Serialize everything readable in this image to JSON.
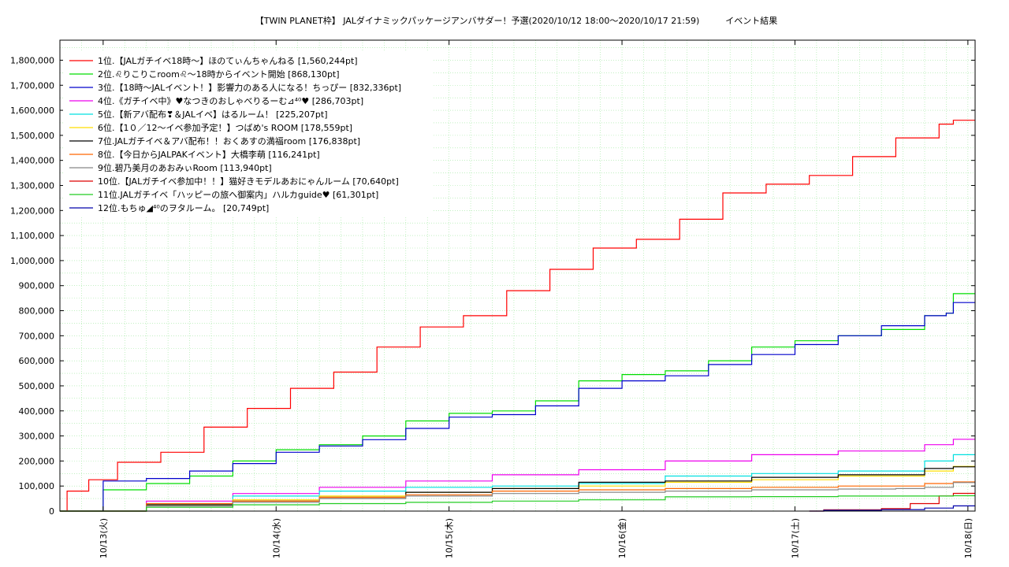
{
  "chart_data": {
    "type": "line",
    "title": "【TWIN PLANET枠】 JALダイナミックパッケージアンバサダー！予選(2020/10/12 18:00～2020/10/17 21:59)　　　イベント結果",
    "xlabel": "",
    "ylabel": "",
    "x_ticks": [
      "10/13(火)",
      "10/14(水)",
      "10/15(木)",
      "10/16(金)",
      "10/17(土)",
      "10/18(日)"
    ],
    "x_range": [
      "2020-10-12 18:00",
      "2020-10-18 01:00"
    ],
    "y_ticks": [
      "0",
      "100,000",
      "200,000",
      "300,000",
      "400,000",
      "500,000",
      "600,000",
      "700,000",
      "800,000",
      "900,000",
      "1,000,000",
      "1,100,000",
      "1,200,000",
      "1,300,000",
      "1,400,000",
      "1,500,000",
      "1,600,000",
      "1,700,000",
      "1,800,000"
    ],
    "ylim": [
      0,
      1880000
    ],
    "grid": true,
    "legend_position": "top-left",
    "series": [
      {
        "name": "1位.【JALガチイベ18時〜】ほのてぃんちゃんねる [1,560,244pt]",
        "color": "#ff0000",
        "points": [
          [
            "2020-10-12 18:00",
            0
          ],
          [
            "2020-10-12 19:00",
            80000
          ],
          [
            "2020-10-12 22:00",
            125000
          ],
          [
            "2020-10-13 02:00",
            195000
          ],
          [
            "2020-10-13 08:00",
            235000
          ],
          [
            "2020-10-13 14:00",
            335000
          ],
          [
            "2020-10-13 20:00",
            410000
          ],
          [
            "2020-10-14 02:00",
            490000
          ],
          [
            "2020-10-14 08:00",
            555000
          ],
          [
            "2020-10-14 14:00",
            655000
          ],
          [
            "2020-10-14 20:00",
            735000
          ],
          [
            "2020-10-15 02:00",
            780000
          ],
          [
            "2020-10-15 08:00",
            880000
          ],
          [
            "2020-10-15 14:00",
            965000
          ],
          [
            "2020-10-15 20:00",
            1050000
          ],
          [
            "2020-10-16 02:00",
            1085000
          ],
          [
            "2020-10-16 08:00",
            1165000
          ],
          [
            "2020-10-16 14:00",
            1270000
          ],
          [
            "2020-10-16 20:00",
            1305000
          ],
          [
            "2020-10-17 02:00",
            1340000
          ],
          [
            "2020-10-17 08:00",
            1415000
          ],
          [
            "2020-10-17 14:00",
            1490000
          ],
          [
            "2020-10-17 20:00",
            1545000
          ],
          [
            "2020-10-17 21:59",
            1560244
          ],
          [
            "2020-10-18 01:00",
            1560244
          ]
        ]
      },
      {
        "name": "2位.♌りこりこroom♌〜18時からイベント開始 [868,130pt]",
        "color": "#00dd00",
        "points": [
          [
            "2020-10-12 18:00",
            0
          ],
          [
            "2020-10-13 00:00",
            85000
          ],
          [
            "2020-10-13 06:00",
            110000
          ],
          [
            "2020-10-13 12:00",
            140000
          ],
          [
            "2020-10-13 18:00",
            200000
          ],
          [
            "2020-10-14 00:00",
            245000
          ],
          [
            "2020-10-14 06:00",
            265000
          ],
          [
            "2020-10-14 12:00",
            300000
          ],
          [
            "2020-10-14 18:00",
            360000
          ],
          [
            "2020-10-15 00:00",
            390000
          ],
          [
            "2020-10-15 06:00",
            400000
          ],
          [
            "2020-10-15 12:00",
            440000
          ],
          [
            "2020-10-15 18:00",
            520000
          ],
          [
            "2020-10-16 00:00",
            545000
          ],
          [
            "2020-10-16 06:00",
            560000
          ],
          [
            "2020-10-16 12:00",
            600000
          ],
          [
            "2020-10-16 18:00",
            655000
          ],
          [
            "2020-10-17 00:00",
            680000
          ],
          [
            "2020-10-17 06:00",
            700000
          ],
          [
            "2020-10-17 12:00",
            725000
          ],
          [
            "2020-10-17 18:00",
            780000
          ],
          [
            "2020-10-17 21:00",
            790000
          ],
          [
            "2020-10-17 21:59",
            868130
          ],
          [
            "2020-10-18 01:00",
            868130
          ]
        ]
      },
      {
        "name": "3位.【18時〜JALイベント！】影響力のある人になる！ちっぴー [832,336pt]",
        "color": "#0000cc",
        "points": [
          [
            "2020-10-12 18:00",
            0
          ],
          [
            "2020-10-13 00:00",
            120000
          ],
          [
            "2020-10-13 06:00",
            130000
          ],
          [
            "2020-10-13 12:00",
            160000
          ],
          [
            "2020-10-13 18:00",
            190000
          ],
          [
            "2020-10-14 00:00",
            235000
          ],
          [
            "2020-10-14 06:00",
            260000
          ],
          [
            "2020-10-14 12:00",
            285000
          ],
          [
            "2020-10-14 18:00",
            330000
          ],
          [
            "2020-10-15 00:00",
            375000
          ],
          [
            "2020-10-15 06:00",
            385000
          ],
          [
            "2020-10-15 12:00",
            420000
          ],
          [
            "2020-10-15 18:00",
            490000
          ],
          [
            "2020-10-16 00:00",
            520000
          ],
          [
            "2020-10-16 06:00",
            540000
          ],
          [
            "2020-10-16 12:00",
            585000
          ],
          [
            "2020-10-16 18:00",
            625000
          ],
          [
            "2020-10-17 00:00",
            665000
          ],
          [
            "2020-10-17 06:00",
            700000
          ],
          [
            "2020-10-17 12:00",
            740000
          ],
          [
            "2020-10-17 18:00",
            780000
          ],
          [
            "2020-10-17 21:00",
            790000
          ],
          [
            "2020-10-17 21:59",
            832336
          ],
          [
            "2020-10-18 01:00",
            832336
          ]
        ]
      },
      {
        "name": "4位.《ガチイベ中》♥なつきのおしゃべりるーむ⊿⁴⁰♥ [286,703pt]",
        "color": "#ee00ee",
        "points": [
          [
            "2020-10-12 18:00",
            0
          ],
          [
            "2020-10-13 06:00",
            40000
          ],
          [
            "2020-10-13 18:00",
            70000
          ],
          [
            "2020-10-14 06:00",
            95000
          ],
          [
            "2020-10-14 18:00",
            120000
          ],
          [
            "2020-10-15 06:00",
            145000
          ],
          [
            "2020-10-15 18:00",
            165000
          ],
          [
            "2020-10-16 06:00",
            200000
          ],
          [
            "2020-10-16 18:00",
            225000
          ],
          [
            "2020-10-17 06:00",
            240000
          ],
          [
            "2020-10-17 18:00",
            265000
          ],
          [
            "2020-10-17 21:59",
            286703
          ],
          [
            "2020-10-18 01:00",
            286703
          ]
        ]
      },
      {
        "name": "5位.【新アバ配布❣＆JALイベ】はるルーム！ [225,207pt]",
        "color": "#00e0e0",
        "points": [
          [
            "2020-10-12 18:00",
            0
          ],
          [
            "2020-10-13 06:00",
            30000
          ],
          [
            "2020-10-13 18:00",
            60000
          ],
          [
            "2020-10-14 06:00",
            80000
          ],
          [
            "2020-10-14 18:00",
            95000
          ],
          [
            "2020-10-15 06:00",
            100000
          ],
          [
            "2020-10-15 18:00",
            110000
          ],
          [
            "2020-10-16 06:00",
            140000
          ],
          [
            "2020-10-16 18:00",
            150000
          ],
          [
            "2020-10-17 06:00",
            160000
          ],
          [
            "2020-10-17 18:00",
            200000
          ],
          [
            "2020-10-17 21:59",
            225207
          ],
          [
            "2020-10-18 01:00",
            225207
          ]
        ]
      },
      {
        "name": "6位.【1０／12〜イベ参加予定！】つばめ's ROOM [178,559pt]",
        "color": "#ffdd00",
        "points": [
          [
            "2020-10-12 18:00",
            0
          ],
          [
            "2020-10-13 06:00",
            25000
          ],
          [
            "2020-10-13 18:00",
            45000
          ],
          [
            "2020-10-14 06:00",
            60000
          ],
          [
            "2020-10-14 18:00",
            75000
          ],
          [
            "2020-10-15 06:00",
            90000
          ],
          [
            "2020-10-15 18:00",
            100000
          ],
          [
            "2020-10-16 06:00",
            115000
          ],
          [
            "2020-10-16 18:00",
            125000
          ],
          [
            "2020-10-17 06:00",
            140000
          ],
          [
            "2020-10-17 18:00",
            160000
          ],
          [
            "2020-10-17 21:59",
            178559
          ],
          [
            "2020-10-18 01:00",
            178559
          ]
        ]
      },
      {
        "name": "7位.JALガチイベ＆アバ配布！！おくあすの満福room [176,838pt]",
        "color": "#000000",
        "points": [
          [
            "2020-10-12 18:00",
            0
          ],
          [
            "2020-10-13 06:00",
            25000
          ],
          [
            "2020-10-13 18:00",
            40000
          ],
          [
            "2020-10-14 06:00",
            55000
          ],
          [
            "2020-10-14 18:00",
            75000
          ],
          [
            "2020-10-15 06:00",
            90000
          ],
          [
            "2020-10-15 18:00",
            115000
          ],
          [
            "2020-10-16 06:00",
            120000
          ],
          [
            "2020-10-16 18:00",
            135000
          ],
          [
            "2020-10-17 06:00",
            145000
          ],
          [
            "2020-10-17 18:00",
            170000
          ],
          [
            "2020-10-17 21:59",
            176838
          ],
          [
            "2020-10-18 01:00",
            176838
          ]
        ]
      },
      {
        "name": "8位.【今日からJALPAKイベント】大橋李萌 [116,241pt]",
        "color": "#ff6600",
        "points": [
          [
            "2020-10-12 18:00",
            0
          ],
          [
            "2020-10-13 06:00",
            30000
          ],
          [
            "2020-10-13 18:00",
            40000
          ],
          [
            "2020-10-14 06:00",
            55000
          ],
          [
            "2020-10-14 18:00",
            65000
          ],
          [
            "2020-10-15 06:00",
            80000
          ],
          [
            "2020-10-15 18:00",
            85000
          ],
          [
            "2020-10-16 06:00",
            90000
          ],
          [
            "2020-10-16 18:00",
            95000
          ],
          [
            "2020-10-17 06:00",
            100000
          ],
          [
            "2020-10-17 18:00",
            110000
          ],
          [
            "2020-10-17 21:59",
            116241
          ],
          [
            "2020-10-18 01:00",
            116241
          ]
        ]
      },
      {
        "name": "9位.碧乃美月のあおみぃRoom [113,940pt]",
        "color": "#888888",
        "points": [
          [
            "2020-10-12 18:00",
            0
          ],
          [
            "2020-10-13 06:00",
            20000
          ],
          [
            "2020-10-13 18:00",
            35000
          ],
          [
            "2020-10-14 06:00",
            50000
          ],
          [
            "2020-10-14 18:00",
            60000
          ],
          [
            "2020-10-15 06:00",
            70000
          ],
          [
            "2020-10-15 18:00",
            75000
          ],
          [
            "2020-10-16 06:00",
            80000
          ],
          [
            "2020-10-16 18:00",
            85000
          ],
          [
            "2020-10-17 06:00",
            88000
          ],
          [
            "2020-10-17 14:00",
            90000
          ],
          [
            "2020-10-17 18:00",
            95000
          ],
          [
            "2020-10-17 21:59",
            113940
          ],
          [
            "2020-10-18 01:00",
            113940
          ]
        ]
      },
      {
        "name": "10位.【JALガチイベ参加中！！】猫好きモデルあおにゃんルーム [70,640pt]",
        "color": "#dd0000",
        "points": [
          [
            "2020-10-17 02:00",
            0
          ],
          [
            "2020-10-17 04:00",
            5000
          ],
          [
            "2020-10-17 12:00",
            10000
          ],
          [
            "2020-10-17 16:00",
            30000
          ],
          [
            "2020-10-17 20:00",
            60000
          ],
          [
            "2020-10-17 21:59",
            70640
          ],
          [
            "2020-10-18 01:00",
            70640
          ]
        ]
      },
      {
        "name": "11位.JALガチイベ「ハッピーの旅へ御案内」ハルカguide♥ [61,301pt]",
        "color": "#22cc22",
        "points": [
          [
            "2020-10-12 18:00",
            0
          ],
          [
            "2020-10-13 06:00",
            15000
          ],
          [
            "2020-10-13 18:00",
            25000
          ],
          [
            "2020-10-14 06:00",
            30000
          ],
          [
            "2020-10-14 18:00",
            35000
          ],
          [
            "2020-10-15 06:00",
            40000
          ],
          [
            "2020-10-15 18:00",
            45000
          ],
          [
            "2020-10-16 06:00",
            57000
          ],
          [
            "2020-10-16 18:00",
            58000
          ],
          [
            "2020-10-17 06:00",
            60000
          ],
          [
            "2020-10-17 21:59",
            61301
          ],
          [
            "2020-10-18 01:00",
            61301
          ]
        ]
      },
      {
        "name": "12位.もちゅ◢⁴⁰のヲタルーム。 [20,749pt]",
        "color": "#0000aa",
        "points": [
          [
            "2020-10-17 02:00",
            0
          ],
          [
            "2020-10-17 04:00",
            3000
          ],
          [
            "2020-10-17 12:00",
            6000
          ],
          [
            "2020-10-17 18:00",
            12000
          ],
          [
            "2020-10-17 21:59",
            20749
          ],
          [
            "2020-10-18 01:00",
            20749
          ]
        ]
      }
    ]
  }
}
